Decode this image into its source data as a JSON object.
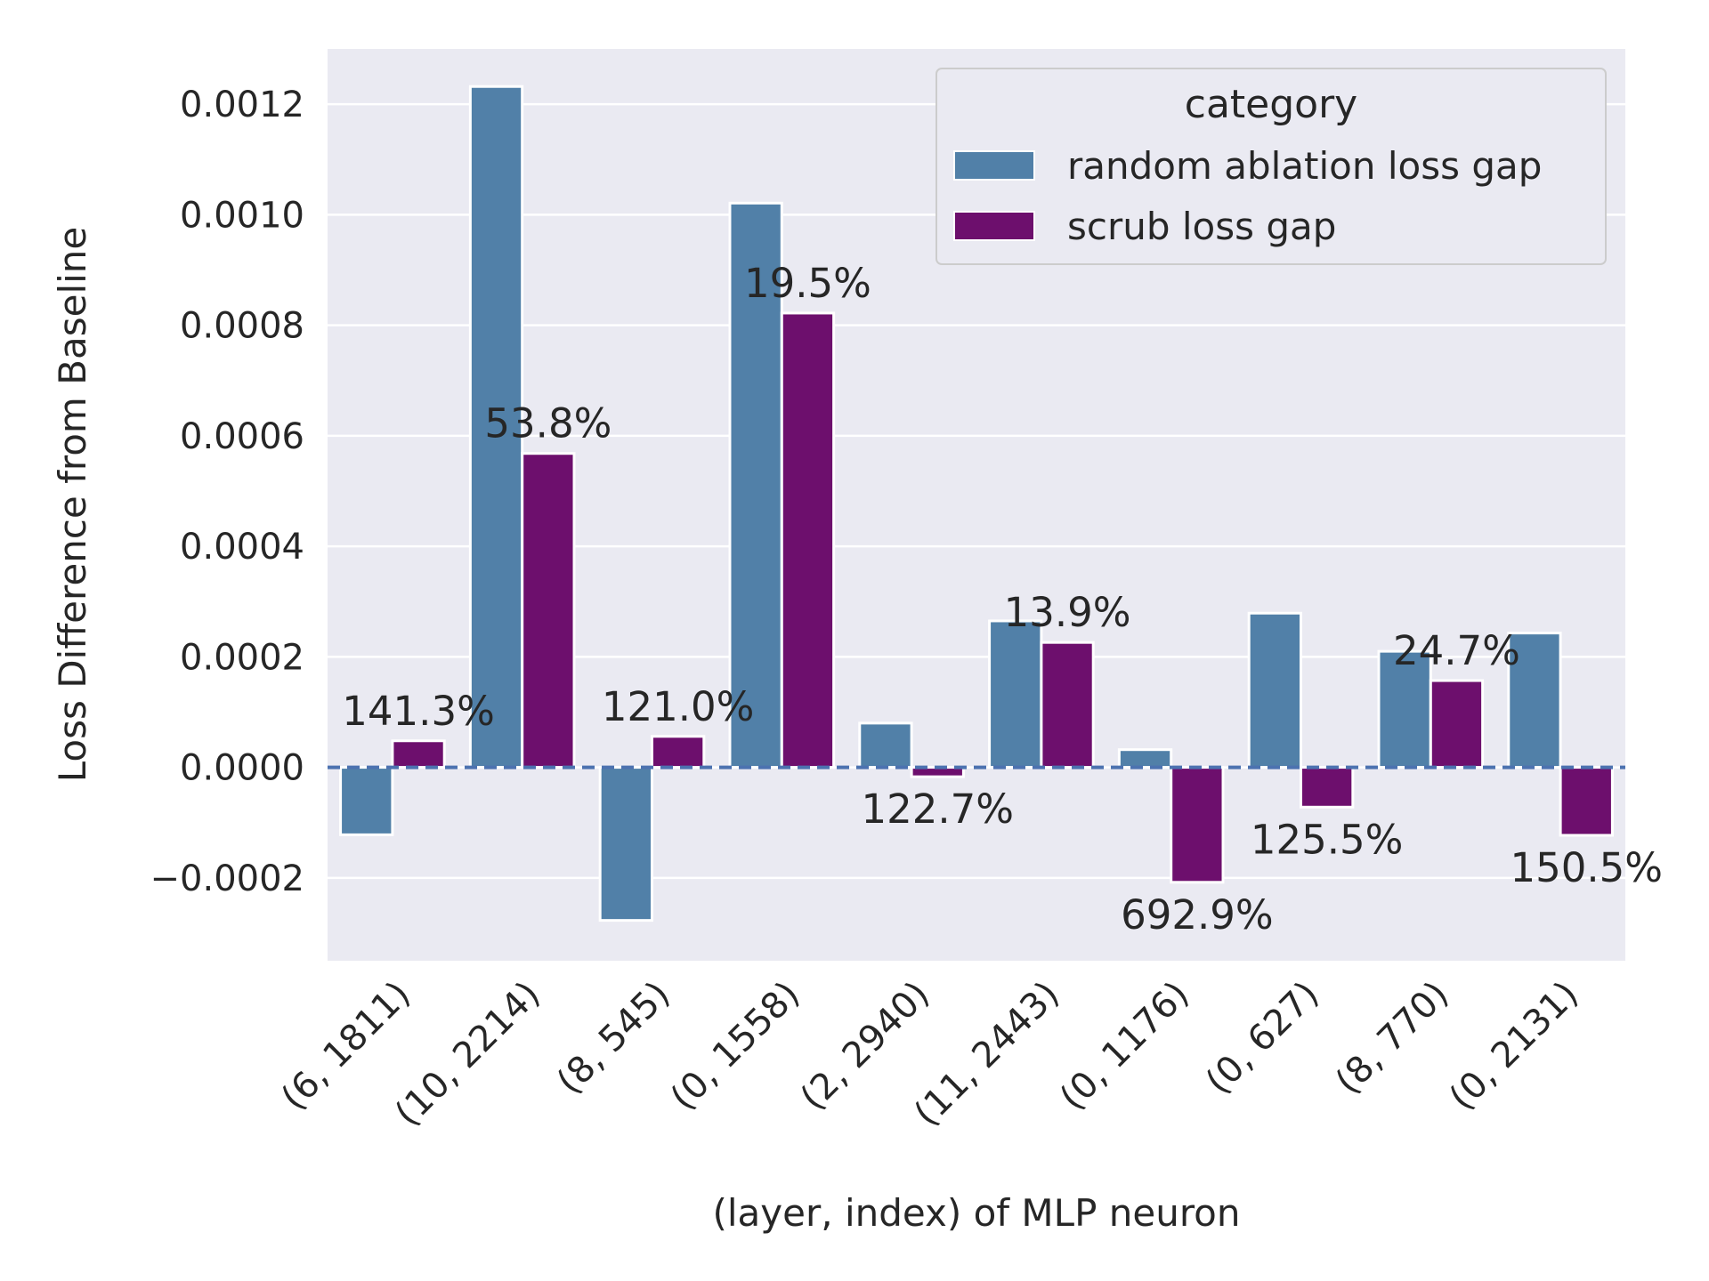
{
  "chart_data": {
    "type": "bar",
    "xlabel": "(layer, index) of MLP neuron",
    "ylabel": "Loss Difference from Baseline",
    "ylim": [
      -0.00035,
      0.0013
    ],
    "yticks": [
      -0.0002,
      0.0,
      0.0002,
      0.0004,
      0.0006,
      0.0008,
      0.001,
      0.0012
    ],
    "ytick_labels": [
      "−0.0002",
      "0.0000",
      "0.0002",
      "0.0004",
      "0.0006",
      "0.0008",
      "0.0010",
      "0.0012"
    ],
    "grid": true,
    "baseline": 0,
    "categories": [
      "(6, 1811)",
      "(10, 2214)",
      "(8, 545)",
      "(0, 1558)",
      "(2, 2940)",
      "(11, 2443)",
      "(0, 1176)",
      "(0, 627)",
      "(8, 770)",
      "(0, 2131)"
    ],
    "series": [
      {
        "name": "random ablation loss gap",
        "color": "#5180a8",
        "values": [
          -0.000122,
          0.001232,
          -0.000277,
          0.001021,
          8e-05,
          0.000265,
          3.2e-05,
          0.000279,
          0.00021,
          0.000243
        ]
      },
      {
        "name": "scrub loss gap",
        "color": "#6d0f6d",
        "values": [
          4.8e-05,
          0.000568,
          5.6e-05,
          0.000822,
          -1.7e-05,
          0.000226,
          -0.000208,
          -7.2e-05,
          0.000157,
          -0.000123
        ]
      }
    ],
    "annotations": [
      "141.3%",
      "53.8%",
      "121.0%",
      "19.5%",
      "122.7%",
      "13.9%",
      "692.9%",
      "125.5%",
      "24.7%",
      "150.5%"
    ],
    "legend": {
      "title": "category",
      "position": "top-right"
    },
    "colors": {
      "background": "#eaeaf2",
      "grid": "#ffffff",
      "baseline": "#4c72b0"
    }
  }
}
